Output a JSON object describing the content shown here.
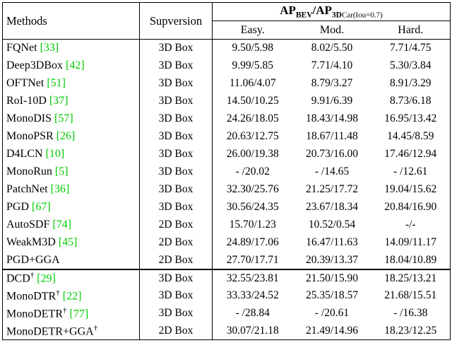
{
  "colors": {
    "citation_green": "#00cc00"
  },
  "header": {
    "methods": "Methods",
    "supervision": "Supversion",
    "ap": {
      "ap1": "AP",
      "sub1": "BEV",
      "slash": "/",
      "ap2": "AP",
      "sub2": "3D",
      "condition": "Car(Iou=0.7)"
    },
    "columns": [
      "Easy.",
      "Mod.",
      "Hard."
    ]
  },
  "rows": [
    {
      "method": "FQNet",
      "dagger": false,
      "cite": "[33]",
      "sup": "3D Box",
      "easy": "9.50/5.98",
      "mod": "8.02/5.50",
      "hard": "7.71/4.75",
      "group": 1
    },
    {
      "method": "Deep3DBox",
      "dagger": false,
      "cite": "[42]",
      "sup": "3D Box",
      "easy": "9.99/5.85",
      "mod": "7.71/4.10",
      "hard": "5.30/3.84",
      "group": 1
    },
    {
      "method": "OFTNet",
      "dagger": false,
      "cite": "[51]",
      "sup": "3D Box",
      "easy": "11.06/4.07",
      "mod": "8.79/3.27",
      "hard": "8.91/3.29",
      "group": 1
    },
    {
      "method": "RoI-10D",
      "dagger": false,
      "cite": "[37]",
      "sup": "3D Box",
      "easy": "14.50/10.25",
      "mod": "9.91/6.39",
      "hard": "8.73/6.18",
      "group": 1
    },
    {
      "method": "MonoDIS",
      "dagger": false,
      "cite": "[57]",
      "sup": "3D Box",
      "easy": "24.26/18.05",
      "mod": "18.43/14.98",
      "hard": "16.95/13.42",
      "group": 1
    },
    {
      "method": "MonoPSR",
      "dagger": false,
      "cite": "[26]",
      "sup": "3D Box",
      "easy": "20.63/12.75",
      "mod": "18.67/11.48",
      "hard": "14.45/8.59",
      "group": 1
    },
    {
      "method": "D4LCN",
      "dagger": false,
      "cite": "[10]",
      "sup": "3D Box",
      "easy": "26.00/19.38",
      "mod": "20.73/16.00",
      "hard": "17.46/12.94",
      "group": 1
    },
    {
      "method": "MonoRun",
      "dagger": false,
      "cite": "[5]",
      "sup": "3D Box",
      "easy": "- /20.02",
      "mod": "- /14.65",
      "hard": "- /12.61",
      "group": 1
    },
    {
      "method": "PatchNet",
      "dagger": false,
      "cite": "[36]",
      "sup": "3D Box",
      "easy": "32.30/25.76",
      "mod": "21.25/17.72",
      "hard": "19.04/15.62",
      "group": 1
    },
    {
      "method": "PGD",
      "dagger": false,
      "cite": "[67]",
      "sup": "3D Box",
      "easy": "30.56/24.35",
      "mod": "23.67/18.34",
      "hard": "20.84/16.90",
      "group": 1
    },
    {
      "method": "AutoSDF",
      "dagger": false,
      "cite": "[74]",
      "sup": "2D Box",
      "easy": "15.70/1.23",
      "mod": "10.52/0.54",
      "hard": "-/-",
      "group": 1
    },
    {
      "method": "WeakM3D",
      "dagger": false,
      "cite": "[45]",
      "sup": "2D Box",
      "easy": "24.89/17.06",
      "mod": "16.47/11.63",
      "hard": "14.09/11.17",
      "group": 1
    },
    {
      "method": "PGD+GGA",
      "dagger": false,
      "cite": null,
      "sup": "2D Box",
      "easy": "27.70/17.71",
      "mod": "20.39/13.37",
      "hard": "18.04/10.89",
      "group": 1
    },
    {
      "method": "DCD",
      "dagger": true,
      "cite": "[29]",
      "sup": "3D Box",
      "easy": "32.55/23.81",
      "mod": "21.50/15.90",
      "hard": "18.25/13.21",
      "group": 2
    },
    {
      "method": "MonoDTR",
      "dagger": true,
      "cite": "[22]",
      "sup": "3D Box",
      "easy": "33.33/24.52",
      "mod": "25.35/18.57",
      "hard": "21.68/15.51",
      "group": 2
    },
    {
      "method": "MonoDETR",
      "dagger": true,
      "cite": "[77]",
      "sup": "3D Box",
      "easy": "- /28.84",
      "mod": "- /20.61",
      "hard": "- /16.38",
      "group": 2
    },
    {
      "method": "MonoDETR+GGA",
      "dagger": true,
      "cite": null,
      "sup": "2D Box",
      "easy": "30.07/21.18",
      "mod": "21.49/14.96",
      "hard": "18.23/12.25",
      "group": 2
    }
  ]
}
